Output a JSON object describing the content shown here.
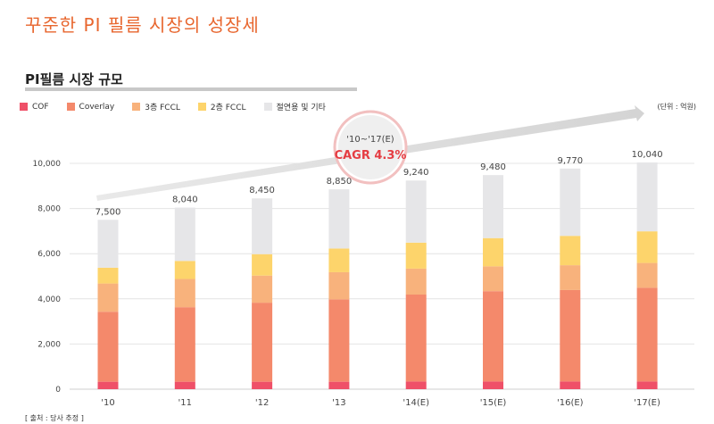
{
  "page_title": "꾸준한 PI 필름 시장의 성장세",
  "section_title": "PI필름 시장 규모",
  "unit_note": "(단위 : 억원)",
  "source_note": "[ 출처 : 당사 추정 ]",
  "cagr": {
    "period": "'10~'17(E)",
    "label": "CAGR 4.3%"
  },
  "colors": {
    "COF": "#ef5068",
    "Coverlay": "#f4896b",
    "3층 FCCL": "#f8b27c",
    "2층 FCCL": "#fdd46b",
    "절연용 및 기타": "#e6e6e8",
    "accent": "#e8662e",
    "cagr": "#e53d43"
  },
  "chart_data": {
    "type": "bar",
    "stacked": true,
    "categories": [
      "'10",
      "'11",
      "'12",
      "'13",
      "'14(E)",
      "'15(E)",
      "'16(E)",
      "'17(E)"
    ],
    "series": [
      {
        "name": "COF",
        "values": [
          330,
          330,
          330,
          330,
          340,
          340,
          340,
          340
        ]
      },
      {
        "name": "Coverlay",
        "values": [
          3100,
          3300,
          3500,
          3650,
          3850,
          4000,
          4050,
          4150
        ]
      },
      {
        "name": "3층 FCCL",
        "values": [
          1250,
          1250,
          1200,
          1200,
          1150,
          1100,
          1100,
          1100
        ]
      },
      {
        "name": "2층 FCCL",
        "values": [
          700,
          800,
          950,
          1050,
          1150,
          1250,
          1300,
          1400
        ]
      },
      {
        "name": "절연용 및 기타",
        "values": [
          2120,
          2360,
          2470,
          2620,
          2750,
          2790,
          2980,
          3050
        ]
      }
    ],
    "totals": [
      "7,500",
      "8,040",
      "8,450",
      "8,850",
      "9,240",
      "9,480",
      "9,770",
      "10,040"
    ],
    "yticks": [
      "0",
      "2,000",
      "4,000",
      "6,000",
      "8,000",
      "10,000"
    ],
    "ylim": [
      0,
      10000
    ],
    "grid": true,
    "legend_position": "top-left"
  }
}
